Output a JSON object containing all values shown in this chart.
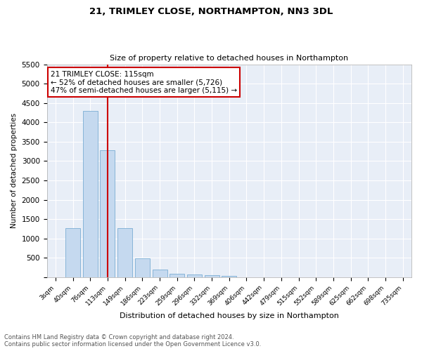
{
  "title1": "21, TRIMLEY CLOSE, NORTHAMPTON, NN3 3DL",
  "title2": "Size of property relative to detached houses in Northampton",
  "xlabel": "Distribution of detached houses by size in Northampton",
  "ylabel": "Number of detached properties",
  "bar_labels": [
    "3sqm",
    "40sqm",
    "76sqm",
    "113sqm",
    "149sqm",
    "186sqm",
    "223sqm",
    "259sqm",
    "296sqm",
    "332sqm",
    "369sqm",
    "406sqm",
    "442sqm",
    "479sqm",
    "515sqm",
    "552sqm",
    "589sqm",
    "625sqm",
    "662sqm",
    "698sqm",
    "735sqm"
  ],
  "bar_values": [
    0,
    1260,
    4300,
    3280,
    1270,
    480,
    195,
    85,
    65,
    45,
    40,
    0,
    0,
    0,
    0,
    0,
    0,
    0,
    0,
    0,
    0
  ],
  "bar_color": "#c5d9ef",
  "bar_edge_color": "#7aadd4",
  "vline_x": 3,
  "vline_color": "#cc0000",
  "annotation_text": "21 TRIMLEY CLOSE: 115sqm\n← 52% of detached houses are smaller (5,726)\n47% of semi-detached houses are larger (5,115) →",
  "annotation_box_color": "#ffffff",
  "annotation_box_edge": "#cc0000",
  "ylim": [
    0,
    5500
  ],
  "yticks": [
    0,
    500,
    1000,
    1500,
    2000,
    2500,
    3000,
    3500,
    4000,
    4500,
    5000,
    5500
  ],
  "footer": "Contains HM Land Registry data © Crown copyright and database right 2024.\nContains public sector information licensed under the Open Government Licence v3.0.",
  "bg_color": "#ffffff",
  "plot_bg_color": "#e8eef7"
}
